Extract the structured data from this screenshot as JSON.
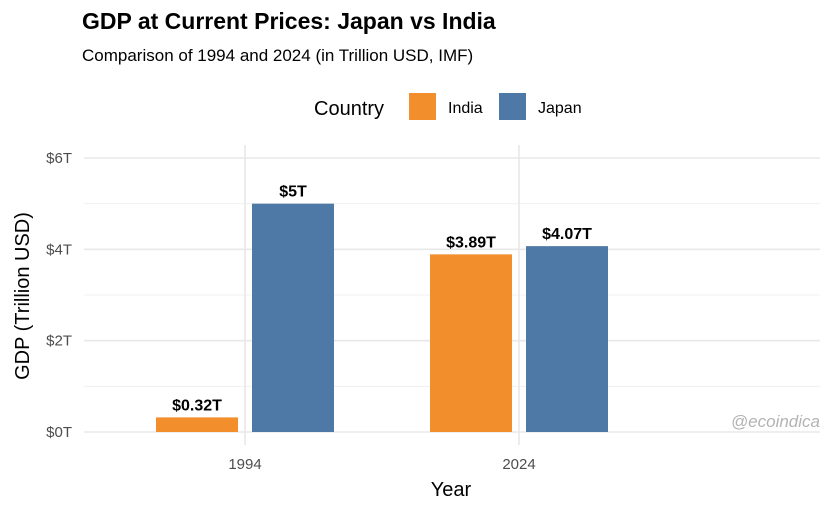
{
  "chart_data": {
    "type": "bar",
    "title": "GDP at Current Prices: Japan vs India",
    "subtitle": "Comparison of 1994 and 2024 (in Trillion USD, IMF)",
    "xlabel": "Year",
    "ylabel": "GDP (Trillion USD)",
    "categories": [
      "1994",
      "2024"
    ],
    "ylim": [
      0,
      6
    ],
    "yticks": [
      0,
      2,
      4,
      6
    ],
    "ytick_labels": [
      "$0T",
      "$2T",
      "$4T",
      "$6T"
    ],
    "grid": true,
    "legend": {
      "title": "Country",
      "position": "top"
    },
    "series": [
      {
        "name": "India",
        "color": "#F28E2B",
        "values": [
          0.32,
          3.89
        ],
        "labels": [
          "$0.32T",
          "$3.89T"
        ]
      },
      {
        "name": "Japan",
        "color": "#4E79A7",
        "values": [
          5.0,
          4.07
        ],
        "labels": [
          "$5T",
          "$4.07T"
        ]
      }
    ],
    "watermark": "@ecoindica"
  }
}
